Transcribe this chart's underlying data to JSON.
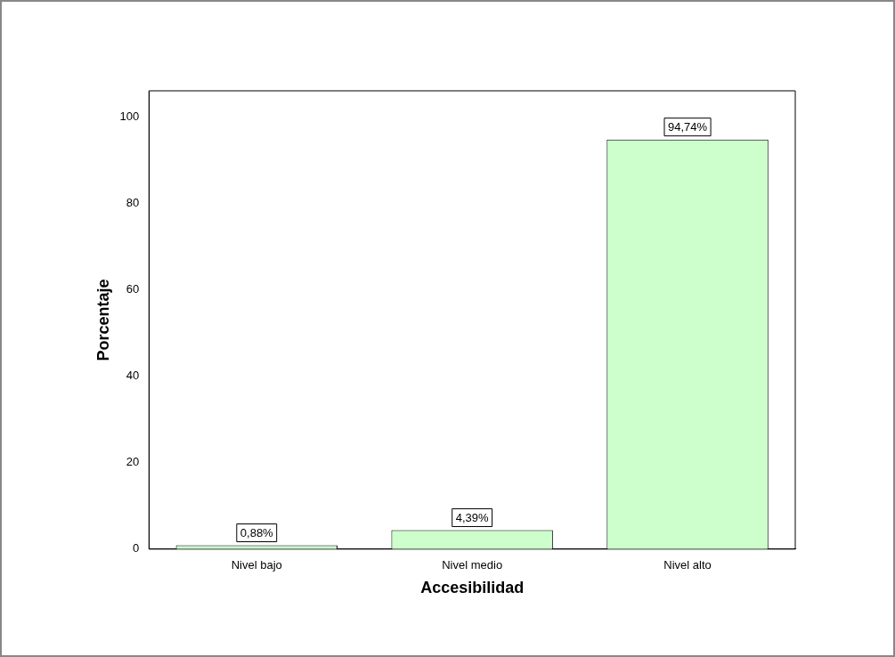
{
  "chart_data": {
    "type": "bar",
    "xlabel": "Accesibilidad",
    "ylabel": "Porcentaje",
    "categories": [
      "Nivel bajo",
      "Nivel medio",
      "Nivel alto"
    ],
    "values": [
      0.88,
      4.39,
      94.74
    ],
    "value_labels": [
      "0,88%",
      "4,39%",
      "94,74%"
    ],
    "color": "#ccffcc",
    "ylim": [
      0,
      106
    ],
    "yticks": [
      0,
      20,
      40,
      60,
      80,
      100
    ],
    "grid": false,
    "legend": false
  }
}
